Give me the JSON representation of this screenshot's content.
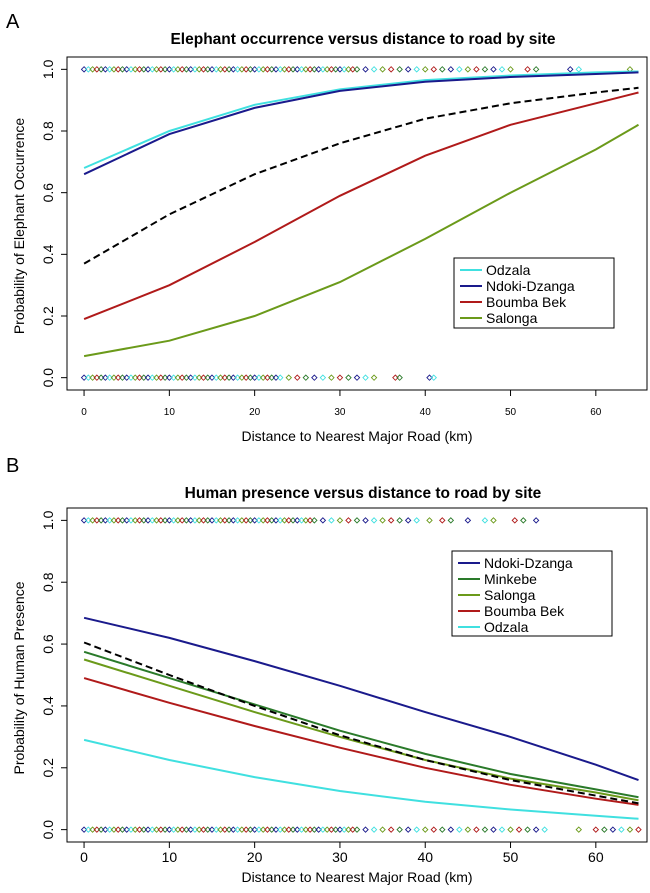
{
  "panels": [
    {
      "letter": "A",
      "chart_data": {
        "type": "line",
        "title": "Elephant occurrence versus distance to road by site",
        "xlabel": "Distance to Nearest Major Road (km)",
        "ylabel": "Probability of Elephant Occurrence",
        "xlim": [
          -2,
          66
        ],
        "ylim": [
          -0.04,
          1.04
        ],
        "xticks": [
          0,
          10,
          20,
          30,
          40,
          50,
          60
        ],
        "yticks": [
          0.0,
          0.2,
          0.4,
          0.6,
          0.8,
          1.0
        ],
        "xtick_labels": [
          "0",
          "10",
          "20",
          "30",
          "40",
          "50",
          "60"
        ],
        "ytick_labels": [
          "0.0",
          "0.2",
          "0.4",
          "0.6",
          "0.8",
          "1.0"
        ],
        "legend_position": "right",
        "series": [
          {
            "name": "Odzala",
            "color": "#40e0e0",
            "style": "solid",
            "x": [
              0,
              10,
              20,
              30,
              40,
              50,
              60,
              65
            ],
            "y": [
              0.68,
              0.8,
              0.885,
              0.935,
              0.965,
              0.98,
              0.99,
              0.993
            ]
          },
          {
            "name": "Ndoki-Dzanga",
            "color": "#1a1a8c",
            "style": "solid",
            "x": [
              0,
              10,
              20,
              30,
              40,
              50,
              60,
              65
            ],
            "y": [
              0.66,
              0.79,
              0.875,
              0.93,
              0.96,
              0.975,
              0.985,
              0.99
            ]
          },
          {
            "name": "Boumba Bek",
            "color": "#b01a1a",
            "style": "solid",
            "x": [
              0,
              10,
              20,
              30,
              40,
              50,
              60,
              65
            ],
            "y": [
              0.19,
              0.3,
              0.44,
              0.59,
              0.72,
              0.82,
              0.89,
              0.925
            ]
          },
          {
            "name": "Salonga",
            "color": "#6b9a1a",
            "style": "solid",
            "x": [
              0,
              10,
              20,
              30,
              40,
              50,
              60,
              65
            ],
            "y": [
              0.07,
              0.12,
              0.2,
              0.31,
              0.45,
              0.6,
              0.74,
              0.82
            ]
          },
          {
            "name": "",
            "color": "#000000",
            "style": "dashed",
            "x": [
              0,
              10,
              20,
              30,
              40,
              50,
              60,
              65
            ],
            "y": [
              0.37,
              0.53,
              0.66,
              0.76,
              0.84,
              0.89,
              0.925,
              0.94
            ]
          }
        ],
        "legend": [
          "Odzala",
          "Ndoki-Dzanga",
          "Boumba Bek",
          "Salonga"
        ],
        "observations": {
          "top_y": 1.0,
          "bottom_y": 0.0,
          "colors": [
            "#1a1a8c",
            "#40e0e0",
            "#6b9a1a",
            "#b01a1a",
            "#2a7a2a"
          ],
          "top_x": [
            0,
            0.5,
            1,
            1.5,
            2,
            2.5,
            3,
            3.5,
            4,
            4.5,
            5,
            5.5,
            6,
            6.5,
            7,
            7.5,
            8,
            8.5,
            9,
            9.5,
            10,
            10.5,
            11,
            11.5,
            12,
            12.5,
            13,
            13.5,
            14,
            14.5,
            15,
            15.5,
            16,
            16.5,
            17,
            17.5,
            18,
            18.5,
            19,
            19.5,
            20,
            20.5,
            21,
            21.5,
            22,
            22.5,
            23,
            23.5,
            24,
            24.5,
            25,
            25.5,
            26,
            26.5,
            27,
            27.5,
            28,
            28.5,
            29,
            29.5,
            30,
            30.5,
            31,
            31.5,
            32,
            33,
            34,
            35,
            36,
            37,
            38,
            39,
            40,
            41,
            42,
            43,
            44,
            45,
            46,
            47,
            48,
            49,
            50,
            52,
            53,
            57,
            58,
            64
          ],
          "bottom_x": [
            0,
            0.5,
            1,
            1.5,
            2,
            2.5,
            3,
            3.5,
            4,
            4.5,
            5,
            5.5,
            6,
            6.5,
            7,
            7.5,
            8,
            8.5,
            9,
            9.5,
            10,
            10.5,
            11,
            11.5,
            12,
            12.5,
            13,
            13.5,
            14,
            14.5,
            15,
            15.5,
            16,
            16.5,
            17,
            17.5,
            18,
            18.5,
            19,
            19.5,
            20,
            20.5,
            21,
            21.5,
            22,
            22.5,
            23,
            24,
            25,
            26,
            27,
            28,
            29,
            30,
            31,
            32,
            33,
            34,
            36.5,
            37,
            40.5,
            41
          ]
        }
      }
    },
    {
      "letter": "B",
      "chart_data": {
        "type": "line",
        "title": "Human presence versus distance to road by site",
        "xlabel": "Distance to Nearest Major Road (km)",
        "ylabel": "Probability of Human Presence",
        "xlim": [
          -2,
          66
        ],
        "ylim": [
          -0.04,
          1.04
        ],
        "xticks": [
          0,
          10,
          20,
          30,
          40,
          50,
          60
        ],
        "yticks": [
          0.0,
          0.2,
          0.4,
          0.6,
          0.8,
          1.0
        ],
        "xtick_labels": [
          "0",
          "10",
          "20",
          "30",
          "40",
          "50",
          "60"
        ],
        "ytick_labels": [
          "0.0",
          "0.2",
          "0.4",
          "0.6",
          "0.8",
          "1.0"
        ],
        "legend_position": "top-right",
        "series": [
          {
            "name": "Ndoki-Dzanga",
            "color": "#1a1a8c",
            "style": "solid",
            "x": [
              0,
              10,
              20,
              30,
              40,
              50,
              60,
              65
            ],
            "y": [
              0.685,
              0.62,
              0.545,
              0.465,
              0.38,
              0.3,
              0.21,
              0.16
            ]
          },
          {
            "name": "Minkebe",
            "color": "#2a7a2a",
            "style": "solid",
            "x": [
              0,
              10,
              20,
              30,
              40,
              50,
              60,
              65
            ],
            "y": [
              0.575,
              0.49,
              0.405,
              0.32,
              0.245,
              0.18,
              0.13,
              0.105
            ]
          },
          {
            "name": "Salonga",
            "color": "#6b9a1a",
            "style": "solid",
            "x": [
              0,
              10,
              20,
              30,
              40,
              50,
              60,
              65
            ],
            "y": [
              0.55,
              0.465,
              0.38,
              0.3,
              0.225,
              0.165,
              0.12,
              0.095
            ]
          },
          {
            "name": "Boumba Bek",
            "color": "#b01a1a",
            "style": "solid",
            "x": [
              0,
              10,
              20,
              30,
              40,
              50,
              60,
              65
            ],
            "y": [
              0.49,
              0.41,
              0.335,
              0.265,
              0.2,
              0.145,
              0.1,
              0.08
            ]
          },
          {
            "name": "Odzala",
            "color": "#40e0e0",
            "style": "solid",
            "x": [
              0,
              10,
              20,
              30,
              40,
              50,
              60,
              65
            ],
            "y": [
              0.29,
              0.225,
              0.17,
              0.125,
              0.09,
              0.065,
              0.045,
              0.035
            ]
          },
          {
            "name": "",
            "color": "#000000",
            "style": "dashed",
            "x": [
              0,
              10,
              20,
              30,
              40,
              50,
              60,
              65
            ],
            "y": [
              0.605,
              0.5,
              0.4,
              0.305,
              0.225,
              0.16,
              0.11,
              0.085
            ]
          }
        ],
        "legend": [
          "Ndoki-Dzanga",
          "Minkebe",
          "Salonga",
          "Boumba Bek",
          "Odzala"
        ],
        "observations": {
          "top_y": 1.0,
          "bottom_y": 0.0,
          "colors": [
            "#1a1a8c",
            "#40e0e0",
            "#6b9a1a",
            "#b01a1a",
            "#2a7a2a"
          ],
          "top_x": [
            0,
            0.5,
            1,
            1.5,
            2,
            2.5,
            3,
            3.5,
            4,
            4.5,
            5,
            5.5,
            6,
            6.5,
            7,
            7.5,
            8,
            8.5,
            9,
            9.5,
            10,
            10.5,
            11,
            11.5,
            12,
            12.5,
            13,
            13.5,
            14,
            14.5,
            15,
            15.5,
            16,
            16.5,
            17,
            17.5,
            18,
            18.5,
            19,
            19.5,
            20,
            20.5,
            21,
            21.5,
            22,
            22.5,
            23,
            23.5,
            24,
            24.5,
            25,
            25.5,
            26,
            26.5,
            27,
            28,
            29,
            30,
            31,
            32,
            33,
            34,
            35,
            36,
            37,
            38,
            39,
            40.5,
            42,
            43,
            45,
            47,
            48,
            50.5,
            51.5,
            53
          ],
          "bottom_x": [
            0,
            0.5,
            1,
            1.5,
            2,
            2.5,
            3,
            3.5,
            4,
            4.5,
            5,
            5.5,
            6,
            6.5,
            7,
            7.5,
            8,
            8.5,
            9,
            9.5,
            10,
            10.5,
            11,
            11.5,
            12,
            12.5,
            13,
            13.5,
            14,
            14.5,
            15,
            15.5,
            16,
            16.5,
            17,
            17.5,
            18,
            18.5,
            19,
            19.5,
            20,
            20.5,
            21,
            21.5,
            22,
            22.5,
            23,
            23.5,
            24,
            24.5,
            25,
            25.5,
            26,
            26.5,
            27,
            27.5,
            28,
            28.5,
            29,
            29.5,
            30,
            30.5,
            31,
            31.5,
            32,
            33,
            34,
            35,
            36,
            37,
            38,
            39,
            40,
            41,
            42,
            43,
            44,
            45,
            46,
            47,
            48,
            49,
            50,
            51,
            52,
            53,
            54,
            58,
            60,
            61,
            62,
            63,
            64,
            65
          ]
        }
      }
    }
  ]
}
